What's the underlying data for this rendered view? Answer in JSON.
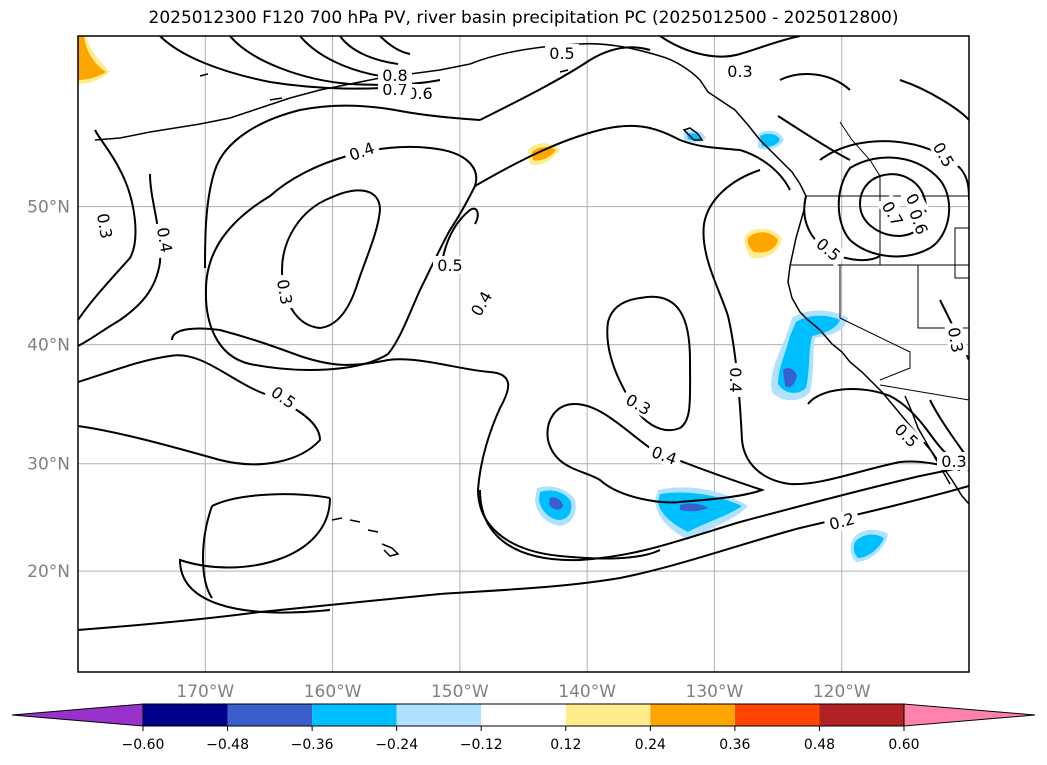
{
  "title": "2025012300 F120 700 hPa PV, river basin precipitation PC (2025012500 - 2025012800)",
  "map": {
    "lon_range": [
      -180,
      -110
    ],
    "lat_range": [
      10,
      60
    ],
    "lon_ticks": [
      {
        "lon": -170,
        "label": "170°W"
      },
      {
        "lon": -160,
        "label": "160°W"
      },
      {
        "lon": -150,
        "label": "150°W"
      },
      {
        "lon": -140,
        "label": "140°W"
      },
      {
        "lon": -130,
        "label": "130°W"
      },
      {
        "lon": -120,
        "label": "120°W"
      }
    ],
    "lat_ticks": [
      {
        "lat": 50,
        "label": "50°N"
      },
      {
        "lat": 40,
        "label": "40°N"
      },
      {
        "lat": 30,
        "label": "30°N"
      },
      {
        "lat": 20,
        "label": "20°N"
      }
    ],
    "gridlines": true,
    "contour_labels": [
      "0.5",
      "0.3",
      "0.5",
      "0.4",
      "0.3",
      "0.4",
      "0.5",
      "0.3",
      "0.4",
      "0.5",
      "0.4",
      "0.3",
      "0.4",
      "0.2",
      "0.5",
      "0.4",
      "0.6",
      "0.3",
      "0.3",
      "0.5",
      "0.6",
      "0.7",
      "0.7",
      "0.8"
    ]
  },
  "colorbar": {
    "ticks": [
      "−0.60",
      "−0.48",
      "−0.36",
      "−0.24",
      "−0.12",
      "0.12",
      "0.24",
      "0.36",
      "0.48",
      "0.60"
    ],
    "colors": [
      "#9932cc",
      "#00008b",
      "#3a5fcd",
      "#00bfff",
      "#b0e2ff",
      "#ffffff",
      "#ffec8b",
      "#ffa500",
      "#ff4500",
      "#b22222",
      "#ff82ab"
    ],
    "extend": "both"
  }
}
